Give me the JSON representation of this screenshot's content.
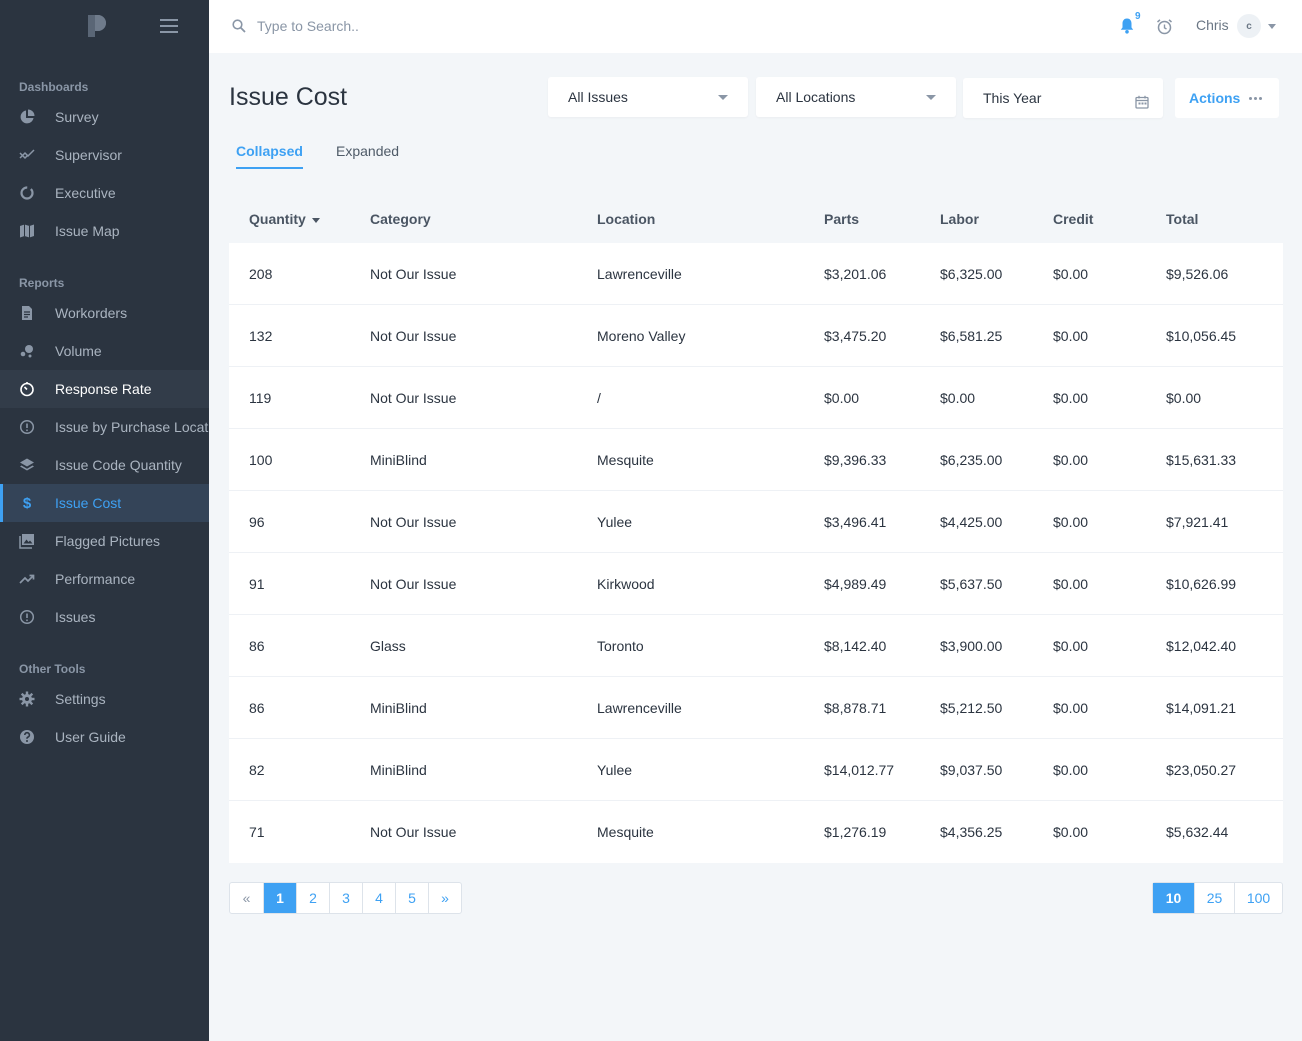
{
  "sidebar": {
    "sections": [
      {
        "title": "Dashboards",
        "items": [
          {
            "label": "Survey",
            "icon": "pie-chart-icon",
            "state": "normal"
          },
          {
            "label": "Supervisor",
            "icon": "trend-arrows-icon",
            "state": "normal"
          },
          {
            "label": "Executive",
            "icon": "donut-icon",
            "state": "normal"
          },
          {
            "label": "Issue Map",
            "icon": "map-icon",
            "state": "normal"
          }
        ]
      },
      {
        "title": "Reports",
        "items": [
          {
            "label": "Workorders",
            "icon": "document-icon",
            "state": "normal"
          },
          {
            "label": "Volume",
            "icon": "bubbles-icon",
            "state": "normal"
          },
          {
            "label": "Response Rate",
            "icon": "timer-icon",
            "state": "hover"
          },
          {
            "label": "Issue by Purchase Location",
            "icon": "alert-circle-icon",
            "state": "normal"
          },
          {
            "label": "Issue Code Quantity",
            "icon": "layers-icon",
            "state": "normal"
          },
          {
            "label": "Issue Cost",
            "icon": "dollar-icon",
            "state": "active"
          },
          {
            "label": "Flagged Pictures",
            "icon": "pictures-icon",
            "state": "normal"
          },
          {
            "label": "Performance",
            "icon": "trending-up-icon",
            "state": "normal"
          },
          {
            "label": "Issues",
            "icon": "alert-circle-icon",
            "state": "normal"
          }
        ]
      },
      {
        "title": "Other Tools",
        "items": [
          {
            "label": "Settings",
            "icon": "gear-icon",
            "state": "normal"
          },
          {
            "label": "User Guide",
            "icon": "help-icon",
            "state": "normal"
          }
        ]
      }
    ]
  },
  "topbar": {
    "search_placeholder": "Type to Search..",
    "notification_count": "9",
    "user_name": "Chris",
    "user_initial": "c"
  },
  "page": {
    "title": "Issue Cost",
    "filters": {
      "issues": "All Issues",
      "locations": "All Locations",
      "period": "This Year"
    },
    "actions_label": "Actions",
    "tabs": [
      {
        "label": "Collapsed",
        "active": true
      },
      {
        "label": "Expanded",
        "active": false
      }
    ]
  },
  "table": {
    "columns": [
      "Quantity",
      "Category",
      "Location",
      "Parts",
      "Labor",
      "Credit",
      "Total"
    ],
    "rows": [
      [
        "208",
        "Not Our Issue",
        "Lawrenceville",
        "$3,201.06",
        "$6,325.00",
        "$0.00",
        "$9,526.06"
      ],
      [
        "132",
        "Not Our Issue",
        "Moreno Valley",
        "$3,475.20",
        "$6,581.25",
        "$0.00",
        "$10,056.45"
      ],
      [
        "119",
        "Not Our Issue",
        "/",
        "$0.00",
        "$0.00",
        "$0.00",
        "$0.00"
      ],
      [
        "100",
        "MiniBlind",
        "Mesquite",
        "$9,396.33",
        "$6,235.00",
        "$0.00",
        "$15,631.33"
      ],
      [
        "96",
        "Not Our Issue",
        "Yulee",
        "$3,496.41",
        "$4,425.00",
        "$0.00",
        "$7,921.41"
      ],
      [
        "91",
        "Not Our Issue",
        "Kirkwood",
        "$4,989.49",
        "$5,637.50",
        "$0.00",
        "$10,626.99"
      ],
      [
        "86",
        "Glass",
        "Toronto",
        "$8,142.40",
        "$3,900.00",
        "$0.00",
        "$12,042.40"
      ],
      [
        "86",
        "MiniBlind",
        "Lawrenceville",
        "$8,878.71",
        "$5,212.50",
        "$0.00",
        "$14,091.21"
      ],
      [
        "82",
        "MiniBlind",
        "Yulee",
        "$14,012.77",
        "$9,037.50",
        "$0.00",
        "$23,050.27"
      ],
      [
        "71",
        "Not Our Issue",
        "Mesquite",
        "$1,276.19",
        "$4,356.25",
        "$0.00",
        "$5,632.44"
      ]
    ]
  },
  "pagination": {
    "prev": "«",
    "pages": [
      "1",
      "2",
      "3",
      "4",
      "5"
    ],
    "current_page": "1",
    "next": "»",
    "page_sizes": [
      "10",
      "25",
      "100"
    ],
    "current_size": "10"
  },
  "colors": {
    "sidebar_bg": "#2b3440",
    "accent": "#3ea1f3",
    "page_bg": "#f3f6f9"
  }
}
